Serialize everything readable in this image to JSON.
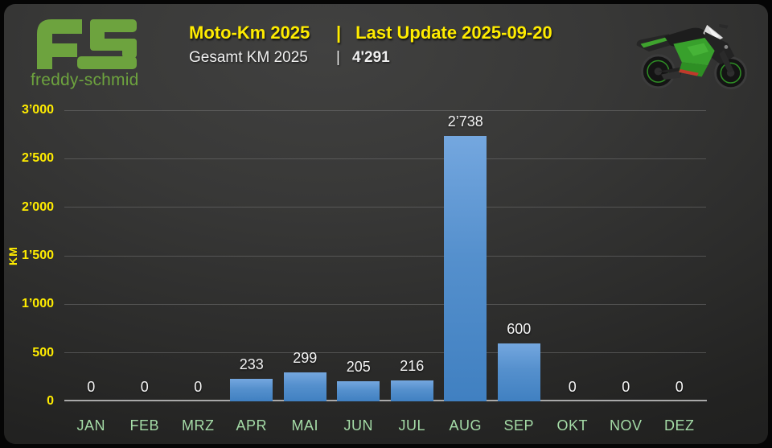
{
  "header": {
    "logo": {
      "monogram": "FS",
      "name": "freddy-schmid"
    },
    "title": {
      "left": "Moto-Km 2025",
      "separator": "|",
      "right": "Last Update 2025-09-20"
    },
    "subtitle": {
      "label": "Gesamt KM 2025",
      "separator": "|",
      "value": "4'291"
    },
    "image": "green-kawasaki-sportbike"
  },
  "colors": {
    "accent_yellow": "#ffec00",
    "logo_green": "#6da33e",
    "month_label_green": "#a5dca7",
    "bar_gradient_top": "#74a7df",
    "bar_gradient_bottom": "#4080c1",
    "value_label_white": "#f5f5f5",
    "background_dark": "#2c2c2b"
  },
  "chart_data": {
    "type": "bar",
    "title": "Moto-Km 2025 | Last Update 2025-09-20",
    "subtitle": "Gesamt KM 2025 | 4'291",
    "xlabel": "",
    "ylabel": "KM",
    "ylim": [
      0,
      3000
    ],
    "grid": true,
    "legend": false,
    "categories": [
      "JAN",
      "FEB",
      "MRZ",
      "APR",
      "MAI",
      "JUN",
      "JUL",
      "AUG",
      "SEP",
      "OKT",
      "NOV",
      "DEZ"
    ],
    "values": [
      0,
      0,
      0,
      233,
      299,
      205,
      216,
      2738,
      600,
      0,
      0,
      0
    ],
    "value_labels": [
      "0",
      "0",
      "0",
      "233",
      "299",
      "205",
      "216",
      "2’738",
      "600",
      "0",
      "0",
      "0"
    ],
    "total": 4291,
    "y_ticks": [
      {
        "value": 0,
        "label": "0"
      },
      {
        "value": 500,
        "label": "500"
      },
      {
        "value": 1000,
        "label": "1’000"
      },
      {
        "value": 1500,
        "label": "1’500"
      },
      {
        "value": 2000,
        "label": "2’000"
      },
      {
        "value": 2500,
        "label": "2’500"
      },
      {
        "value": 3000,
        "label": "3’000"
      }
    ]
  }
}
